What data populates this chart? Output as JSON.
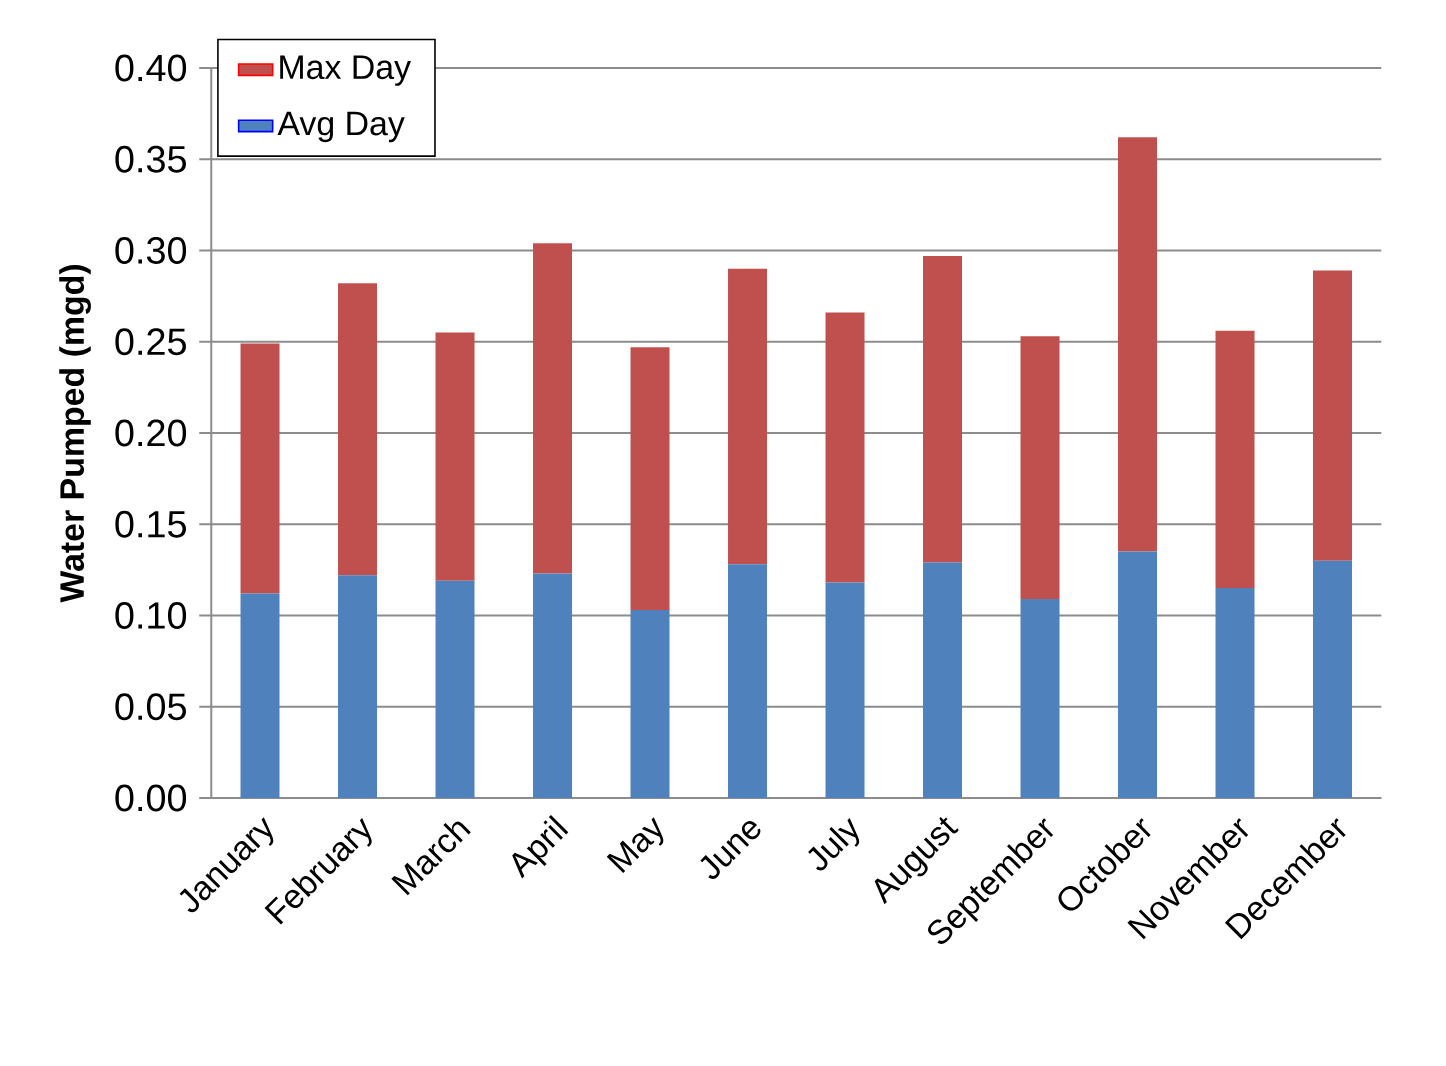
{
  "chart_data": {
    "type": "bar",
    "stacked": true,
    "ylabel": "Water Pumped (mgd)",
    "categories": [
      "January",
      "February",
      "March",
      "April",
      "May",
      "June",
      "July",
      "August",
      "September",
      "October",
      "November",
      "December"
    ],
    "series": [
      {
        "name": "Avg Day",
        "color": "#4f81bd",
        "values": [
          0.112,
          0.122,
          0.119,
          0.123,
          0.103,
          0.128,
          0.118,
          0.129,
          0.109,
          0.135,
          0.115,
          0.13
        ]
      },
      {
        "name": "Max Day",
        "color": "#c0504d",
        "values": [
          0.137,
          0.16,
          0.136,
          0.181,
          0.144,
          0.162,
          0.148,
          0.168,
          0.144,
          0.227,
          0.141,
          0.159
        ]
      }
    ],
    "ylim": [
      0,
      0.4
    ],
    "yticks": [
      {
        "value": 0,
        "label": "0.00"
      },
      {
        "value": 0.05,
        "label": "0.05"
      },
      {
        "value": 0.1,
        "label": "0.10"
      },
      {
        "value": 0.15,
        "label": "0.15"
      },
      {
        "value": 0.2,
        "label": "0.20"
      },
      {
        "value": 0.25,
        "label": "0.25"
      },
      {
        "value": 0.3,
        "label": "0.30"
      },
      {
        "value": 0.35,
        "label": "0.35"
      },
      {
        "value": 0.4,
        "label": "0.40"
      }
    ],
    "grid": "y",
    "legend": "top left"
  }
}
